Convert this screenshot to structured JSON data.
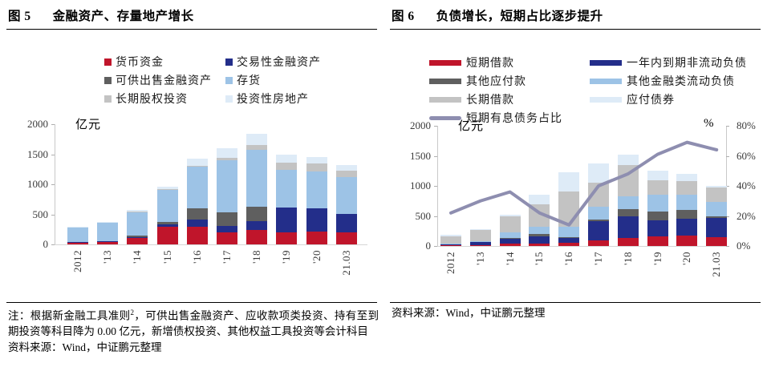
{
  "page": {
    "background": "#ffffff"
  },
  "figures": [
    {
      "label": "图 5",
      "title": "金融资产、存量地产增长",
      "unit": "亿元",
      "legend": [
        {
          "label": "货币资金",
          "color": "#c0152b"
        },
        {
          "label": "交易性金融资产",
          "color": "#232e8a"
        },
        {
          "label": "可供出售金融资产",
          "color": "#5f5f5f"
        },
        {
          "label": "存货",
          "color": "#9dc3e6"
        },
        {
          "label": "长期股权投资",
          "color": "#c3c3c3"
        },
        {
          "label": "投资性房地产",
          "color": "#deebf7"
        }
      ],
      "note": {
        "part1": "注：根据新金融工具准则",
        "sup": "2",
        "part2": "，可供出售金融资产、应收款项类投资、持有至到期投资等科目降为 0.00 亿元，新增债权投资、其他权益工具投资等会计科目"
      },
      "source": "资料来源：Wind，中证鹏元整理"
    },
    {
      "label": "图 6",
      "title": "负债增长，短期占比逐步提升",
      "unit": "亿元",
      "unit_right": "%",
      "legend": [
        {
          "label": "短期借款",
          "color": "#c0152b"
        },
        {
          "label": "一年内到期非流动负债",
          "color": "#232e8a"
        },
        {
          "label": "其他应付款",
          "color": "#5f5f5f"
        },
        {
          "label": "其他金融类流动负债",
          "color": "#9dc3e6"
        },
        {
          "label": "长期借款",
          "color": "#c3c3c3"
        },
        {
          "label": "应付债券",
          "color": "#deebf7"
        },
        {
          "label": "短期有息债务占比",
          "color": "#8e8eb0",
          "marker": "line"
        }
      ],
      "source": "资料来源：Wind，中证鹏元整理"
    }
  ],
  "chart_data": [
    {
      "type": "bar",
      "stacked": true,
      "title": "金融资产、存量地产增长",
      "categories": [
        "2012",
        "'13",
        "'14",
        "'15",
        "'16",
        "'17",
        "'18",
        "'19",
        "'20",
        "21.03"
      ],
      "series": [
        {
          "name": "货币资金",
          "color": "#c0152b",
          "values": [
            30,
            45,
            110,
            300,
            300,
            200,
            235,
            200,
            210,
            195
          ]
        },
        {
          "name": "交易性金融资产",
          "color": "#232e8a",
          "values": [
            5,
            5,
            15,
            40,
            110,
            110,
            150,
            410,
            390,
            315
          ]
        },
        {
          "name": "可供出售金融资产",
          "color": "#5f5f5f",
          "values": [
            0,
            0,
            20,
            30,
            190,
            225,
            245,
            0,
            0,
            0
          ]
        },
        {
          "name": "存货",
          "color": "#9dc3e6",
          "values": [
            245,
            310,
            390,
            540,
            690,
            860,
            950,
            630,
            620,
            610
          ]
        },
        {
          "name": "长期股权投资",
          "color": "#c3c3c3",
          "values": [
            0,
            0,
            10,
            15,
            20,
            50,
            80,
            120,
            130,
            110
          ]
        },
        {
          "name": "投资性房地产",
          "color": "#deebf7",
          "values": [
            15,
            15,
            30,
            40,
            120,
            150,
            180,
            140,
            100,
            95
          ]
        }
      ],
      "ylabel": "亿元",
      "ylim": [
        0,
        2000
      ],
      "yticks": [
        0,
        500,
        1000,
        1500,
        2000
      ],
      "grid": false,
      "legend_position": "top"
    },
    {
      "type": "bar",
      "stacked": true,
      "title": "负债增长，短期占比逐步提升",
      "categories": [
        "2012",
        "'13",
        "'14",
        "'15",
        "'16",
        "'17",
        "'18",
        "'19",
        "'20",
        "21.03"
      ],
      "series": [
        {
          "name": "短期借款",
          "color": "#c0152b",
          "values": [
            10,
            15,
            35,
            45,
            50,
            95,
            140,
            160,
            170,
            150
          ]
        },
        {
          "name": "一年内到期非流动负债",
          "color": "#232e8a",
          "values": [
            25,
            55,
            90,
            120,
            80,
            320,
            350,
            265,
            290,
            320
          ]
        },
        {
          "name": "其他应付款",
          "color": "#5f5f5f",
          "values": [
            5,
            10,
            15,
            30,
            20,
            30,
            120,
            155,
            135,
            25
          ]
        },
        {
          "name": "其他金融类流动负债",
          "color": "#9dc3e6",
          "values": [
            5,
            5,
            85,
            130,
            165,
            205,
            215,
            270,
            260,
            235
          ]
        },
        {
          "name": "长期借款",
          "color": "#c3c3c3",
          "values": [
            115,
            180,
            270,
            365,
            590,
            410,
            525,
            245,
            230,
            240
          ]
        },
        {
          "name": "应付债券",
          "color": "#deebf7",
          "values": [
            30,
            10,
            20,
            170,
            325,
            310,
            170,
            155,
            115,
            25
          ]
        }
      ],
      "line_series": {
        "name": "短期有息债务占比",
        "color": "#8e8eb0",
        "axis": "right",
        "values": [
          22,
          30,
          36,
          22,
          14,
          40,
          48,
          61,
          69,
          64
        ]
      },
      "ylabel": "亿元",
      "ylim": [
        0,
        2000
      ],
      "yticks": [
        0,
        500,
        1000,
        1500,
        2000
      ],
      "y2label": "%",
      "y2lim": [
        0,
        80
      ],
      "y2ticks": [
        0,
        20,
        40,
        60,
        80
      ],
      "y2_suffix": "%",
      "grid": false,
      "legend_position": "top"
    }
  ]
}
